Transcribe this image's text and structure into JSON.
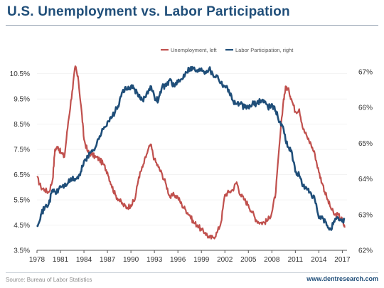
{
  "header": {
    "title": "U.S. Unemployment vs. Labor Participation"
  },
  "footer": {
    "source": "Source: Bureau of Labor Statistics",
    "site": "www.dentresearch.com"
  },
  "colors": {
    "unemployment": "#c0504d",
    "participation": "#1f4e79",
    "title": "#1f4e79"
  },
  "chart_data": {
    "type": "line",
    "title": "U.S. Unemployment vs. Labor Participation",
    "x_range": [
      1978,
      2017.6
    ],
    "x_ticks": [
      "1978",
      "1981",
      "1984",
      "1987",
      "1990",
      "1993",
      "1996",
      "1999",
      "2002",
      "2005",
      "2008",
      "2011",
      "2014",
      "2017"
    ],
    "y_left": {
      "range": [
        3.5,
        11.0
      ],
      "ticks": [
        "3.5%",
        "4.5%",
        "5.5%",
        "6.5%",
        "7.5%",
        "8.5%",
        "9.5%",
        "10.5%"
      ]
    },
    "y_right": {
      "range": [
        62.0,
        67.3
      ],
      "ticks": [
        "62%",
        "63%",
        "64%",
        "65%",
        "66%",
        "67%"
      ]
    },
    "legend_position": "top",
    "series": [
      {
        "name": "Unemployment, left",
        "axis": "left",
        "points": [
          [
            1978.0,
            6.4
          ],
          [
            1978.5,
            6.0
          ],
          [
            1979.0,
            5.9
          ],
          [
            1979.5,
            5.8
          ],
          [
            1980.0,
            6.3
          ],
          [
            1980.3,
            7.5
          ],
          [
            1980.7,
            7.6
          ],
          [
            1981.0,
            7.4
          ],
          [
            1981.5,
            7.2
          ],
          [
            1982.0,
            8.6
          ],
          [
            1982.5,
            9.8
          ],
          [
            1982.9,
            10.8
          ],
          [
            1983.3,
            10.2
          ],
          [
            1983.7,
            9.0
          ],
          [
            1984.0,
            7.9
          ],
          [
            1984.5,
            7.4
          ],
          [
            1985.0,
            7.3
          ],
          [
            1985.5,
            7.2
          ],
          [
            1986.0,
            7.1
          ],
          [
            1986.5,
            6.9
          ],
          [
            1987.0,
            6.6
          ],
          [
            1987.5,
            6.1
          ],
          [
            1988.0,
            5.7
          ],
          [
            1988.5,
            5.5
          ],
          [
            1989.0,
            5.3
          ],
          [
            1989.5,
            5.2
          ],
          [
            1990.0,
            5.3
          ],
          [
            1990.5,
            5.5
          ],
          [
            1991.0,
            6.4
          ],
          [
            1991.5,
            6.8
          ],
          [
            1992.0,
            7.3
          ],
          [
            1992.5,
            7.7
          ],
          [
            1993.0,
            7.1
          ],
          [
            1993.5,
            6.8
          ],
          [
            1994.0,
            6.5
          ],
          [
            1994.5,
            6.1
          ],
          [
            1995.0,
            5.6
          ],
          [
            1995.5,
            5.7
          ],
          [
            1996.0,
            5.6
          ],
          [
            1996.5,
            5.3
          ],
          [
            1997.0,
            5.1
          ],
          [
            1997.5,
            4.9
          ],
          [
            1998.0,
            4.6
          ],
          [
            1998.5,
            4.5
          ],
          [
            1999.0,
            4.3
          ],
          [
            1999.5,
            4.2
          ],
          [
            2000.0,
            4.0
          ],
          [
            2000.5,
            4.0
          ],
          [
            2001.0,
            4.2
          ],
          [
            2001.5,
            4.6
          ],
          [
            2002.0,
            5.7
          ],
          [
            2002.5,
            5.8
          ],
          [
            2003.0,
            5.9
          ],
          [
            2003.5,
            6.2
          ],
          [
            2004.0,
            5.7
          ],
          [
            2004.5,
            5.5
          ],
          [
            2005.0,
            5.3
          ],
          [
            2005.5,
            5.0
          ],
          [
            2006.0,
            4.7
          ],
          [
            2006.5,
            4.6
          ],
          [
            2007.0,
            4.6
          ],
          [
            2007.5,
            4.7
          ],
          [
            2008.0,
            5.0
          ],
          [
            2008.5,
            5.8
          ],
          [
            2009.0,
            7.8
          ],
          [
            2009.5,
            9.5
          ],
          [
            2009.8,
            10.0
          ],
          [
            2010.2,
            9.8
          ],
          [
            2010.5,
            9.5
          ],
          [
            2011.0,
            9.0
          ],
          [
            2011.5,
            9.1
          ],
          [
            2012.0,
            8.3
          ],
          [
            2012.5,
            8.0
          ],
          [
            2013.0,
            7.7
          ],
          [
            2013.5,
            7.3
          ],
          [
            2014.0,
            6.6
          ],
          [
            2014.5,
            6.1
          ],
          [
            2015.0,
            5.6
          ],
          [
            2015.5,
            5.2
          ],
          [
            2016.0,
            4.9
          ],
          [
            2016.5,
            4.9
          ],
          [
            2017.0,
            4.7
          ],
          [
            2017.3,
            4.4
          ]
        ]
      },
      {
        "name": "Labor Participation, right",
        "axis": "right",
        "points": [
          [
            1978.0,
            62.7
          ],
          [
            1978.5,
            63.0
          ],
          [
            1979.0,
            63.2
          ],
          [
            1979.5,
            63.3
          ],
          [
            1980.0,
            63.7
          ],
          [
            1980.5,
            63.6
          ],
          [
            1981.0,
            63.8
          ],
          [
            1981.5,
            63.8
          ],
          [
            1982.0,
            63.9
          ],
          [
            1982.5,
            64.0
          ],
          [
            1983.0,
            64.0
          ],
          [
            1983.5,
            64.1
          ],
          [
            1984.0,
            64.5
          ],
          [
            1984.5,
            64.6
          ],
          [
            1985.0,
            64.8
          ],
          [
            1985.5,
            64.9
          ],
          [
            1986.0,
            65.2
          ],
          [
            1986.5,
            65.4
          ],
          [
            1987.0,
            65.6
          ],
          [
            1987.5,
            65.7
          ],
          [
            1988.0,
            65.9
          ],
          [
            1988.5,
            66.1
          ],
          [
            1989.0,
            66.5
          ],
          [
            1989.5,
            66.5
          ],
          [
            1990.0,
            66.6
          ],
          [
            1990.5,
            66.5
          ],
          [
            1991.0,
            66.3
          ],
          [
            1991.5,
            66.2
          ],
          [
            1992.0,
            66.4
          ],
          [
            1992.5,
            66.6
          ],
          [
            1993.0,
            66.3
          ],
          [
            1993.5,
            66.2
          ],
          [
            1994.0,
            66.6
          ],
          [
            1994.5,
            66.6
          ],
          [
            1995.0,
            66.8
          ],
          [
            1995.5,
            66.6
          ],
          [
            1996.0,
            66.7
          ],
          [
            1996.5,
            66.8
          ],
          [
            1997.0,
            67.0
          ],
          [
            1997.5,
            67.1
          ],
          [
            1998.0,
            67.1
          ],
          [
            1998.5,
            67.0
          ],
          [
            1999.0,
            67.1
          ],
          [
            1999.5,
            67.0
          ],
          [
            2000.0,
            67.1
          ],
          [
            2000.5,
            66.9
          ],
          [
            2001.0,
            66.9
          ],
          [
            2001.5,
            66.7
          ],
          [
            2002.0,
            66.6
          ],
          [
            2002.5,
            66.5
          ],
          [
            2003.0,
            66.2
          ],
          [
            2003.5,
            66.1
          ],
          [
            2004.0,
            66.1
          ],
          [
            2004.5,
            66.0
          ],
          [
            2005.0,
            66.0
          ],
          [
            2005.5,
            66.1
          ],
          [
            2006.0,
            66.1
          ],
          [
            2006.5,
            66.2
          ],
          [
            2007.0,
            66.2
          ],
          [
            2007.5,
            66.0
          ],
          [
            2008.0,
            66.1
          ],
          [
            2008.5,
            65.9
          ],
          [
            2009.0,
            65.6
          ],
          [
            2009.5,
            65.4
          ],
          [
            2010.0,
            64.9
          ],
          [
            2010.5,
            64.8
          ],
          [
            2011.0,
            64.2
          ],
          [
            2011.5,
            64.1
          ],
          [
            2012.0,
            63.8
          ],
          [
            2012.5,
            63.7
          ],
          [
            2013.0,
            63.6
          ],
          [
            2013.5,
            63.4
          ],
          [
            2014.0,
            62.9
          ],
          [
            2014.5,
            62.9
          ],
          [
            2015.0,
            62.7
          ],
          [
            2015.5,
            62.6
          ],
          [
            2016.0,
            62.8
          ],
          [
            2016.5,
            62.9
          ],
          [
            2017.0,
            62.8
          ],
          [
            2017.3,
            62.9
          ]
        ]
      }
    ]
  }
}
